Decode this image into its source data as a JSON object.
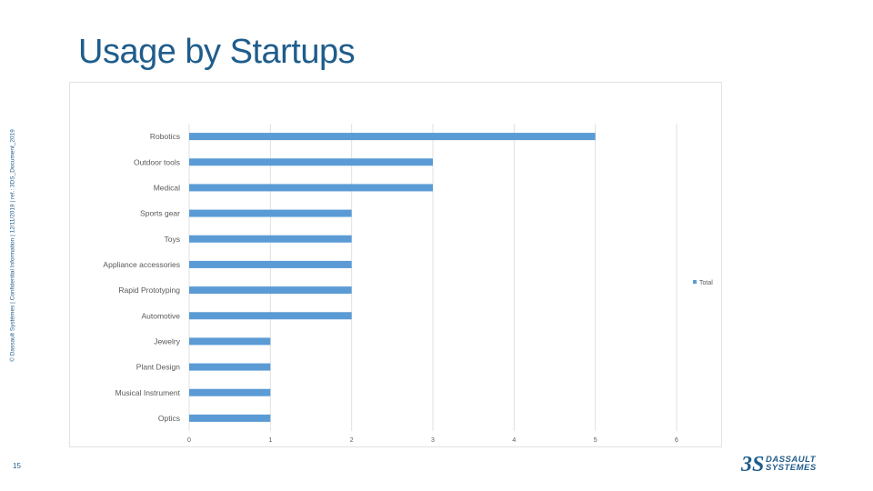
{
  "slide": {
    "title": "Usage by Startups",
    "side_note": "© Dassault Systèmes | Confidential Information | 12/11/2019 | ref.: 3DS_Document_2019",
    "page_number": "15",
    "logo_line1": "DASSAULT",
    "logo_line2": "SYSTEMES",
    "logo_mark": "3S"
  },
  "colors": {
    "bar": "#5b9bd5",
    "title": "#1f5d8c",
    "grid": "#e0e0e0"
  },
  "chart_data": {
    "type": "bar",
    "orientation": "horizontal",
    "categories": [
      "Robotics",
      "Outdoor tools",
      "Medical",
      "Sports gear",
      "Toys",
      "Appliance accessories",
      "Rapid Prototyping",
      "Automotive",
      "Jewelry",
      "Plant Design",
      "Musical Instrument",
      "Optics"
    ],
    "series": [
      {
        "name": "Total",
        "values": [
          5,
          3,
          3,
          2,
          2,
          2,
          2,
          2,
          1,
          1,
          1,
          1
        ]
      }
    ],
    "xlim": [
      0,
      6
    ],
    "xticks": [
      "0",
      "1",
      "2",
      "3",
      "4",
      "5",
      "6"
    ],
    "grid": true,
    "legend_position": "right"
  }
}
